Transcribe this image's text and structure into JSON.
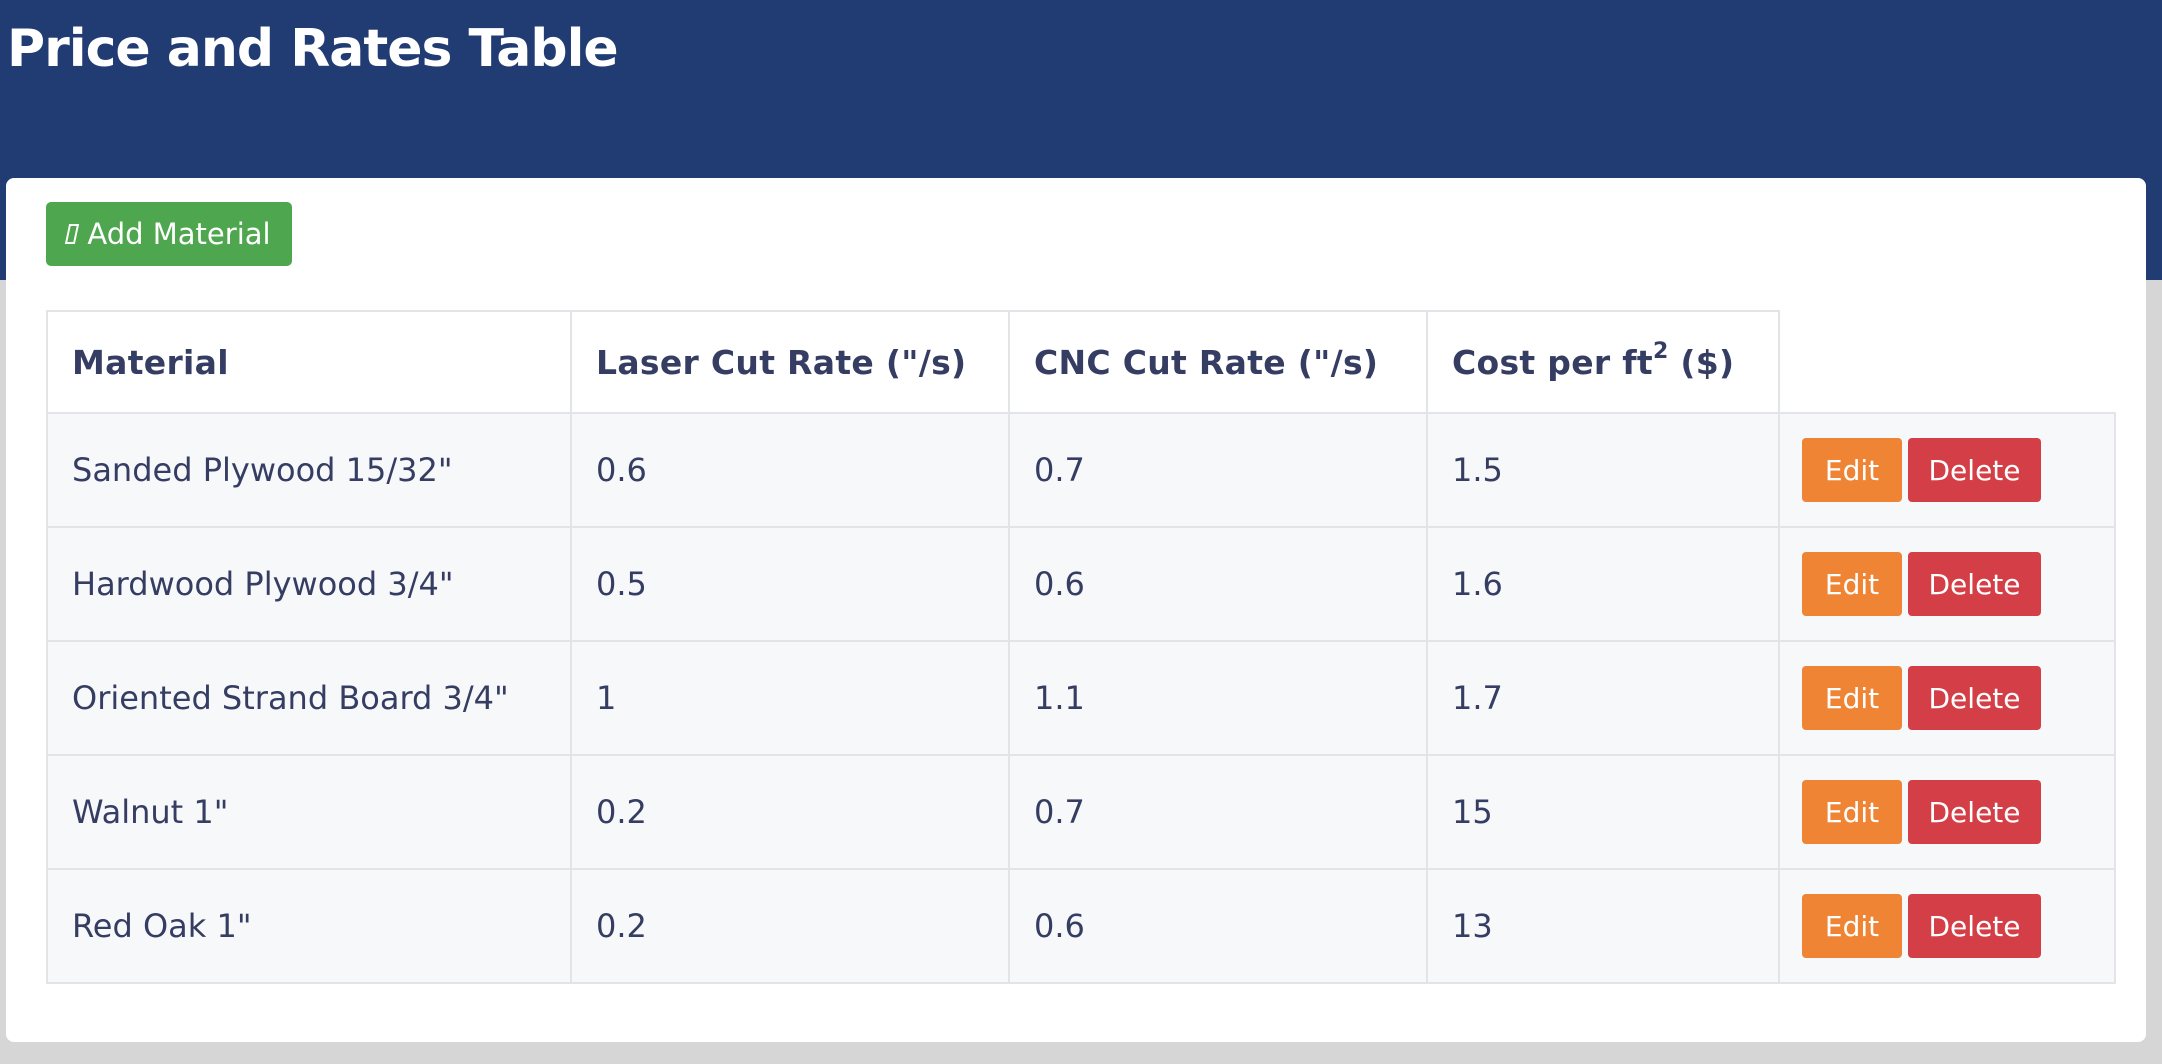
{
  "header": {
    "title": "Price and Rates Table"
  },
  "toolbar": {
    "add_label": "Add Material",
    "add_icon": "clipboard-icon"
  },
  "table": {
    "columns": {
      "material": "Material",
      "laser": "Laser Cut Rate (\"/s)",
      "cnc": "CNC Cut Rate (\"/s)",
      "cost_prefix": "Cost per ft",
      "cost_superscript": "2",
      "cost_suffix": " ($)"
    },
    "rows": [
      {
        "material": "Sanded Plywood 15/32\"",
        "laser": "0.6",
        "cnc": "0.7",
        "cost": "1.5",
        "edit": "Edit",
        "delete": "Delete"
      },
      {
        "material": "Hardwood Plywood 3/4\"",
        "laser": "0.5",
        "cnc": "0.6",
        "cost": "1.6",
        "edit": "Edit",
        "delete": "Delete"
      },
      {
        "material": "Oriented Strand Board 3/4\"",
        "laser": "1",
        "cnc": "1.1",
        "cost": "1.7",
        "edit": "Edit",
        "delete": "Delete"
      },
      {
        "material": "Walnut 1\"",
        "laser": "0.2",
        "cnc": "0.7",
        "cost": "15",
        "edit": "Edit",
        "delete": "Delete"
      },
      {
        "material": "Red Oak 1\"",
        "laser": "0.2",
        "cnc": "0.6",
        "cost": "13",
        "edit": "Edit",
        "delete": "Delete"
      }
    ]
  },
  "colors": {
    "header_bg": "#213b73",
    "add_button": "#4ea64f",
    "edit_button": "#ee8434",
    "delete_button": "#d43f47",
    "text": "#363d62"
  }
}
